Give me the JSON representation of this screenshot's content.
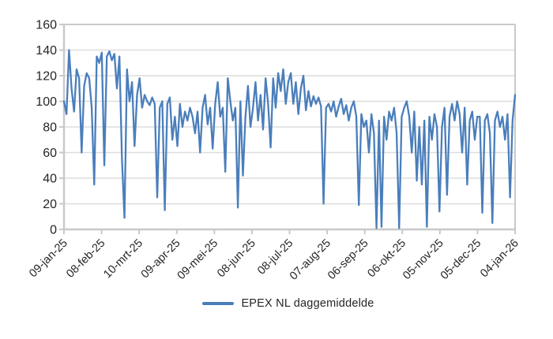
{
  "colors": {
    "series_line": "#4a7ebb",
    "gridline": "#dedede",
    "axis_line": "#c9c9c9",
    "label_text": "#262626",
    "background": "#ffffff"
  },
  "chart_data": {
    "type": "line",
    "title": "",
    "xlabel": "",
    "ylabel": "",
    "ylim": [
      0,
      160
    ],
    "y_tick_step": 20,
    "y_tick_labels": [
      "0",
      "20",
      "40",
      "60",
      "80",
      "100",
      "120",
      "140",
      "160"
    ],
    "x_tick_labels": [
      "09-jan-25",
      "08-feb-25",
      "10-mrt-25",
      "09-apr-25",
      "09-mei-25",
      "08-jun-25",
      "08-jul-25",
      "07-aug-25",
      "06-sep-25",
      "06-okt-25",
      "05-nov-25",
      "05-dec-25",
      "04-jan-26"
    ],
    "grid": "horizontal",
    "legend_position": "bottom",
    "series": [
      {
        "name": "EPEX NL daggemiddelde",
        "color": "#4a7ebb",
        "sampling": "daily values approximated at 2-day intervals, 09-jan-25 through 04-jan-26",
        "values": [
          100,
          90,
          140,
          110,
          92,
          125,
          118,
          60,
          112,
          122,
          118,
          95,
          35,
          135,
          130,
          138,
          50,
          135,
          139,
          132,
          137,
          110,
          135,
          55,
          9,
          125,
          100,
          115,
          65,
          105,
          118,
          95,
          105,
          100,
          97,
          103,
          98,
          25,
          95,
          100,
          15,
          98,
          103,
          70,
          88,
          65,
          98,
          80,
          92,
          85,
          95,
          88,
          75,
          92,
          60,
          95,
          105,
          82,
          95,
          63,
          98,
          115,
          88,
          95,
          45,
          118,
          100,
          85,
          95,
          17,
          100,
          42,
          88,
          112,
          80,
          95,
          115,
          85,
          105,
          78,
          118,
          98,
          64,
          118,
          95,
          122,
          108,
          125,
          98,
          115,
          122,
          98,
          115,
          90,
          110,
          120,
          93,
          108,
          96,
          104,
          98,
          103,
          96,
          20,
          95,
          98,
          92,
          100,
          88,
          96,
          102,
          90,
          97,
          85,
          95,
          100,
          88,
          19,
          90,
          80,
          85,
          60,
          90,
          75,
          1,
          85,
          2,
          88,
          70,
          92,
          85,
          95,
          75,
          1,
          88,
          95,
          100,
          88,
          60,
          92,
          38,
          80,
          35,
          85,
          2,
          88,
          70,
          90,
          80,
          14,
          80,
          95,
          27,
          88,
          98,
          85,
          100,
          90,
          60,
          95,
          35,
          85,
          92,
          70,
          88,
          88,
          13,
          85,
          90,
          75,
          5,
          85,
          92,
          80,
          88,
          70,
          90,
          25,
          85,
          105
        ]
      }
    ]
  },
  "legend": {
    "label": "EPEX NL daggemiddelde"
  }
}
